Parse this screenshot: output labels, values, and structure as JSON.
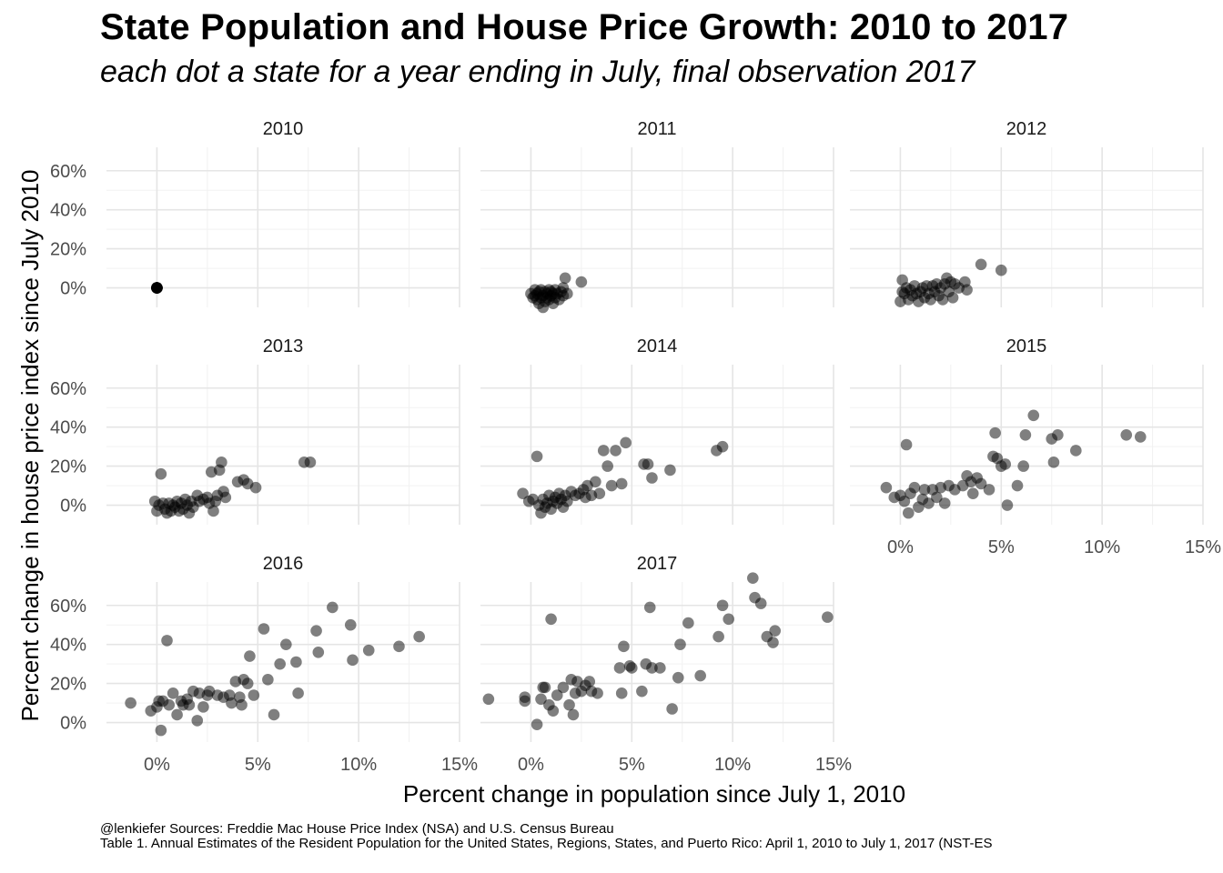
{
  "title": "State Population and House Price Growth: 2010 to 2017",
  "subtitle": "each dot a state for a year ending in July, final observation 2017",
  "caption": {
    "line1": "@lenkiefer Sources: Freddie Mac House Price Index (NSA) and U.S. Census Bureau",
    "line2": "Table 1. Annual Estimates of the Resident Population for the United States, Regions, States, and Puerto Rico: April 1, 2010 to July 1, 2017 (NST-ES"
  },
  "chart_data": {
    "type": "scatter",
    "xlabel": "Percent change in population since July 1, 2010",
    "ylabel": "Percent change in house price index since July 2010",
    "xlim": [
      -2.5,
      15
    ],
    "ylim": [
      -10,
      72
    ],
    "x_ticks": [
      0,
      5,
      10,
      15
    ],
    "x_tick_labels": [
      "0%",
      "5%",
      "10%",
      "15%"
    ],
    "y_ticks": [
      0,
      20,
      40,
      60
    ],
    "y_tick_labels": [
      "0%",
      "20%",
      "40%",
      "60%"
    ],
    "grid": true,
    "point_color": "#000000",
    "point_opacity": 0.5,
    "panels": [
      {
        "label": "2010",
        "points": [
          [
            0,
            0
          ],
          [
            0,
            0
          ],
          [
            0,
            0
          ],
          [
            0,
            0
          ],
          [
            0,
            0
          ],
          [
            0,
            0
          ],
          [
            0,
            0
          ],
          [
            0,
            0
          ],
          [
            0,
            0
          ],
          [
            0,
            0
          ]
        ]
      },
      {
        "label": "2011",
        "points": [
          [
            0.0,
            -3
          ],
          [
            0.1,
            -5
          ],
          [
            0.2,
            -4
          ],
          [
            0.2,
            -1
          ],
          [
            0.3,
            -6
          ],
          [
            0.3,
            -3
          ],
          [
            0.4,
            -2
          ],
          [
            0.4,
            -8
          ],
          [
            0.5,
            -5
          ],
          [
            0.5,
            -1
          ],
          [
            0.6,
            -4
          ],
          [
            0.6,
            -10
          ],
          [
            0.7,
            -7
          ],
          [
            0.7,
            -2
          ],
          [
            0.8,
            -3
          ],
          [
            0.8,
            -5
          ],
          [
            0.9,
            -1
          ],
          [
            0.9,
            -6
          ],
          [
            1.0,
            -4
          ],
          [
            1.0,
            -2
          ],
          [
            1.1,
            -8
          ],
          [
            1.1,
            -3
          ],
          [
            1.2,
            -5
          ],
          [
            1.2,
            -1
          ],
          [
            1.3,
            -3
          ],
          [
            1.4,
            -6
          ],
          [
            1.5,
            -2
          ],
          [
            1.6,
            0
          ],
          [
            1.6,
            -4
          ],
          [
            1.7,
            5
          ],
          [
            1.8,
            -3
          ],
          [
            2.5,
            3
          ]
        ]
      },
      {
        "label": "2012",
        "points": [
          [
            0.0,
            -7
          ],
          [
            0.1,
            -2
          ],
          [
            0.1,
            4
          ],
          [
            0.2,
            -3
          ],
          [
            0.3,
            0
          ],
          [
            0.4,
            -6
          ],
          [
            0.5,
            -1
          ],
          [
            0.6,
            -4
          ],
          [
            0.7,
            1
          ],
          [
            0.8,
            -3
          ],
          [
            0.9,
            -7
          ],
          [
            1.0,
            -2
          ],
          [
            1.1,
            0
          ],
          [
            1.2,
            -5
          ],
          [
            1.3,
            1
          ],
          [
            1.4,
            -3
          ],
          [
            1.5,
            -6
          ],
          [
            1.6,
            1
          ],
          [
            1.7,
            -2
          ],
          [
            1.8,
            2
          ],
          [
            1.9,
            -4
          ],
          [
            2.0,
            0
          ],
          [
            2.1,
            -6
          ],
          [
            2.2,
            2
          ],
          [
            2.3,
            5
          ],
          [
            2.4,
            -2
          ],
          [
            2.5,
            3
          ],
          [
            2.6,
            -5
          ],
          [
            2.7,
            2
          ],
          [
            2.9,
            0
          ],
          [
            3.2,
            3
          ],
          [
            3.3,
            -1
          ],
          [
            4.0,
            12
          ],
          [
            5.0,
            9
          ]
        ]
      },
      {
        "label": "2013",
        "points": [
          [
            -0.1,
            2
          ],
          [
            0.0,
            -3
          ],
          [
            0.1,
            0
          ],
          [
            0.2,
            16
          ],
          [
            0.3,
            1
          ],
          [
            0.4,
            -2
          ],
          [
            0.5,
            -4
          ],
          [
            0.6,
            1
          ],
          [
            0.7,
            -3
          ],
          [
            0.8,
            0
          ],
          [
            0.9,
            -1
          ],
          [
            1.0,
            2
          ],
          [
            1.1,
            -3
          ],
          [
            1.2,
            1
          ],
          [
            1.3,
            -2
          ],
          [
            1.4,
            3
          ],
          [
            1.5,
            0
          ],
          [
            1.6,
            -4
          ],
          [
            1.7,
            2
          ],
          [
            1.8,
            -1
          ],
          [
            2.0,
            5
          ],
          [
            2.1,
            2
          ],
          [
            2.3,
            3
          ],
          [
            2.5,
            4
          ],
          [
            2.6,
            1
          ],
          [
            2.7,
            17
          ],
          [
            2.8,
            -3
          ],
          [
            2.9,
            2
          ],
          [
            3.0,
            5
          ],
          [
            3.1,
            18
          ],
          [
            3.2,
            22
          ],
          [
            3.3,
            7
          ],
          [
            3.4,
            4
          ],
          [
            4.0,
            12
          ],
          [
            4.3,
            13
          ],
          [
            4.5,
            11
          ],
          [
            4.9,
            9
          ],
          [
            7.3,
            22
          ],
          [
            7.6,
            22
          ]
        ]
      },
      {
        "label": "2014",
        "points": [
          [
            -0.4,
            6
          ],
          [
            -0.1,
            2
          ],
          [
            0.1,
            3
          ],
          [
            0.3,
            25
          ],
          [
            0.4,
            0
          ],
          [
            0.5,
            -4
          ],
          [
            0.6,
            3
          ],
          [
            0.7,
            -1
          ],
          [
            0.8,
            1
          ],
          [
            0.9,
            5
          ],
          [
            1.0,
            -2
          ],
          [
            1.1,
            2
          ],
          [
            1.2,
            4
          ],
          [
            1.3,
            1
          ],
          [
            1.4,
            6
          ],
          [
            1.5,
            3
          ],
          [
            1.6,
            -1
          ],
          [
            1.7,
            5
          ],
          [
            1.8,
            2
          ],
          [
            2.0,
            7
          ],
          [
            2.2,
            5
          ],
          [
            2.4,
            6
          ],
          [
            2.6,
            8
          ],
          [
            2.7,
            4
          ],
          [
            2.8,
            10
          ],
          [
            3.0,
            5
          ],
          [
            3.2,
            12
          ],
          [
            3.4,
            6
          ],
          [
            3.6,
            28
          ],
          [
            3.8,
            20
          ],
          [
            4.0,
            10
          ],
          [
            4.2,
            28
          ],
          [
            4.5,
            11
          ],
          [
            4.7,
            32
          ],
          [
            5.6,
            21
          ],
          [
            5.8,
            21
          ],
          [
            6.0,
            14
          ],
          [
            6.9,
            18
          ],
          [
            9.2,
            28
          ],
          [
            9.5,
            30
          ]
        ]
      },
      {
        "label": "2015",
        "points": [
          [
            -0.7,
            9
          ],
          [
            -0.3,
            4
          ],
          [
            0.0,
            5
          ],
          [
            0.2,
            2
          ],
          [
            0.3,
            31
          ],
          [
            0.4,
            -4
          ],
          [
            0.5,
            6
          ],
          [
            0.7,
            9
          ],
          [
            0.9,
            -1
          ],
          [
            1.1,
            3
          ],
          [
            1.2,
            8
          ],
          [
            1.4,
            1
          ],
          [
            1.6,
            8
          ],
          [
            1.8,
            4
          ],
          [
            2.0,
            9
          ],
          [
            2.2,
            1
          ],
          [
            2.4,
            10
          ],
          [
            2.7,
            8
          ],
          [
            3.1,
            10
          ],
          [
            3.3,
            15
          ],
          [
            3.5,
            12
          ],
          [
            3.6,
            6
          ],
          [
            3.8,
            14
          ],
          [
            4.0,
            11
          ],
          [
            4.4,
            8
          ],
          [
            4.6,
            25
          ],
          [
            4.7,
            37
          ],
          [
            4.8,
            24
          ],
          [
            5.0,
            20
          ],
          [
            5.2,
            21
          ],
          [
            5.3,
            0
          ],
          [
            5.8,
            10
          ],
          [
            6.1,
            20
          ],
          [
            6.2,
            36
          ],
          [
            6.6,
            46
          ],
          [
            7.5,
            34
          ],
          [
            7.6,
            22
          ],
          [
            7.8,
            36
          ],
          [
            8.7,
            28
          ],
          [
            11.2,
            36
          ],
          [
            11.9,
            35
          ]
        ]
      },
      {
        "label": "2016",
        "points": [
          [
            -1.3,
            10
          ],
          [
            -0.3,
            6
          ],
          [
            0.0,
            8
          ],
          [
            0.1,
            11
          ],
          [
            0.2,
            -4
          ],
          [
            0.3,
            11
          ],
          [
            0.5,
            42
          ],
          [
            0.6,
            9
          ],
          [
            0.8,
            15
          ],
          [
            1.0,
            4
          ],
          [
            1.2,
            11
          ],
          [
            1.3,
            9
          ],
          [
            1.5,
            12
          ],
          [
            1.6,
            9
          ],
          [
            1.8,
            16
          ],
          [
            2.0,
            1
          ],
          [
            2.1,
            15
          ],
          [
            2.3,
            8
          ],
          [
            2.5,
            14
          ],
          [
            2.6,
            16
          ],
          [
            3.0,
            14
          ],
          [
            3.3,
            13
          ],
          [
            3.6,
            14
          ],
          [
            3.7,
            10
          ],
          [
            3.9,
            21
          ],
          [
            4.1,
            13
          ],
          [
            4.2,
            9
          ],
          [
            4.3,
            22
          ],
          [
            4.5,
            20
          ],
          [
            4.6,
            34
          ],
          [
            4.8,
            14
          ],
          [
            5.3,
            48
          ],
          [
            5.5,
            22
          ],
          [
            5.8,
            4
          ],
          [
            6.1,
            30
          ],
          [
            6.4,
            40
          ],
          [
            6.9,
            31
          ],
          [
            7.0,
            15
          ],
          [
            7.9,
            47
          ],
          [
            8.0,
            36
          ],
          [
            8.7,
            59
          ],
          [
            9.6,
            50
          ],
          [
            9.7,
            32
          ],
          [
            10.5,
            37
          ],
          [
            12.0,
            39
          ],
          [
            13.0,
            44
          ]
        ]
      },
      {
        "label": "2017",
        "points": [
          [
            -2.1,
            12
          ],
          [
            -0.3,
            13
          ],
          [
            -0.3,
            11
          ],
          [
            0.3,
            -1
          ],
          [
            0.5,
            12
          ],
          [
            0.6,
            18
          ],
          [
            0.7,
            18
          ],
          [
            0.9,
            9
          ],
          [
            1.0,
            53
          ],
          [
            1.1,
            6
          ],
          [
            1.3,
            14
          ],
          [
            1.6,
            18
          ],
          [
            1.9,
            9
          ],
          [
            2.0,
            22
          ],
          [
            2.1,
            4
          ],
          [
            2.2,
            15
          ],
          [
            2.3,
            21
          ],
          [
            2.5,
            16
          ],
          [
            2.7,
            19
          ],
          [
            2.9,
            21
          ],
          [
            3.0,
            16
          ],
          [
            3.3,
            15
          ],
          [
            4.4,
            28
          ],
          [
            4.5,
            15
          ],
          [
            4.6,
            39
          ],
          [
            4.9,
            29
          ],
          [
            5.0,
            28
          ],
          [
            5.5,
            16
          ],
          [
            5.7,
            30
          ],
          [
            5.9,
            59
          ],
          [
            6.0,
            28
          ],
          [
            6.4,
            28
          ],
          [
            7.0,
            7
          ],
          [
            7.3,
            23
          ],
          [
            7.4,
            40
          ],
          [
            7.8,
            51
          ],
          [
            8.4,
            24
          ],
          [
            9.3,
            44
          ],
          [
            9.5,
            60
          ],
          [
            9.8,
            53
          ],
          [
            11.0,
            74
          ],
          [
            11.1,
            64
          ],
          [
            11.4,
            61
          ],
          [
            11.7,
            44
          ],
          [
            12.0,
            41
          ],
          [
            12.1,
            47
          ],
          [
            14.7,
            54
          ]
        ]
      }
    ]
  }
}
